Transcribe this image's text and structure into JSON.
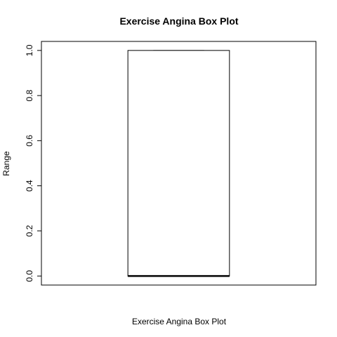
{
  "chart_data": {
    "type": "box",
    "title": "Exercise Angina Box Plot",
    "xlabel": "Exercise Angina Box Plot",
    "ylabel": "Range",
    "ylim": [
      -0.04,
      1.04
    ],
    "yticks": [
      0.0,
      0.2,
      0.4,
      0.6,
      0.8,
      1.0
    ],
    "ytick_labels": [
      "0.0",
      "0.2",
      "0.4",
      "0.6",
      "0.8",
      "1.0"
    ],
    "grid": false,
    "boxes": [
      {
        "min": 0.0,
        "q1": 0.0,
        "median": 0.0,
        "q3": 1.0,
        "max": 1.0
      }
    ],
    "colors": {
      "box_fill": "#ffffff",
      "stroke": "#000000"
    }
  }
}
